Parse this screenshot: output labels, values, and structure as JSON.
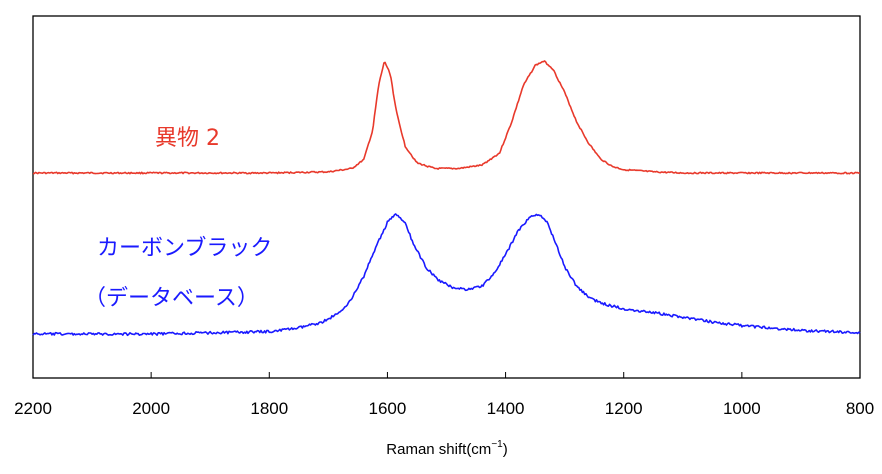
{
  "chart_data": {
    "type": "line",
    "xlabel": "Raman shift(cm",
    "xlabel_sup": "−1",
    "xlabel_close": ")",
    "xlim": [
      2200,
      800
    ],
    "x_reversed": true,
    "x_ticks": [
      2200,
      2000,
      1800,
      1600,
      1400,
      1200,
      1000,
      800
    ],
    "y_ticks_shown": false,
    "grid": false,
    "series": [
      {
        "name": "異物 2",
        "color": "#e8392b",
        "points": [
          [
            2200,
            0.0
          ],
          [
            1800,
            0.0
          ],
          [
            1700,
            0.01
          ],
          [
            1660,
            0.04
          ],
          [
            1640,
            0.12
          ],
          [
            1625,
            0.38
          ],
          [
            1615,
            0.78
          ],
          [
            1605,
            1.0
          ],
          [
            1595,
            0.88
          ],
          [
            1585,
            0.55
          ],
          [
            1570,
            0.24
          ],
          [
            1550,
            0.09
          ],
          [
            1520,
            0.04
          ],
          [
            1480,
            0.04
          ],
          [
            1440,
            0.07
          ],
          [
            1410,
            0.18
          ],
          [
            1390,
            0.45
          ],
          [
            1370,
            0.78
          ],
          [
            1350,
            0.96
          ],
          [
            1335,
            1.0
          ],
          [
            1320,
            0.93
          ],
          [
            1300,
            0.72
          ],
          [
            1280,
            0.46
          ],
          [
            1260,
            0.27
          ],
          [
            1240,
            0.13
          ],
          [
            1220,
            0.06
          ],
          [
            1200,
            0.03
          ],
          [
            1150,
            0.01
          ],
          [
            1100,
            0.0
          ],
          [
            800,
            0.0
          ]
        ]
      },
      {
        "name_lines": [
          "カーボンブラック",
          "（データベース）"
        ],
        "color": "#1a1aff",
        "points": [
          [
            2200,
            0.0
          ],
          [
            2000,
            0.0
          ],
          [
            1900,
            0.01
          ],
          [
            1800,
            0.02
          ],
          [
            1750,
            0.05
          ],
          [
            1710,
            0.1
          ],
          [
            1680,
            0.18
          ],
          [
            1660,
            0.3
          ],
          [
            1640,
            0.48
          ],
          [
            1620,
            0.72
          ],
          [
            1600,
            0.93
          ],
          [
            1585,
            1.0
          ],
          [
            1570,
            0.92
          ],
          [
            1555,
            0.74
          ],
          [
            1535,
            0.56
          ],
          [
            1515,
            0.45
          ],
          [
            1490,
            0.39
          ],
          [
            1465,
            0.37
          ],
          [
            1440,
            0.4
          ],
          [
            1420,
            0.5
          ],
          [
            1400,
            0.66
          ],
          [
            1380,
            0.85
          ],
          [
            1360,
            0.97
          ],
          [
            1345,
            1.0
          ],
          [
            1330,
            0.93
          ],
          [
            1315,
            0.76
          ],
          [
            1300,
            0.56
          ],
          [
            1280,
            0.4
          ],
          [
            1260,
            0.31
          ],
          [
            1240,
            0.26
          ],
          [
            1200,
            0.21
          ],
          [
            1150,
            0.18
          ],
          [
            1100,
            0.14
          ],
          [
            1050,
            0.1
          ],
          [
            1000,
            0.07
          ],
          [
            950,
            0.05
          ],
          [
            900,
            0.03
          ],
          [
            850,
            0.02
          ],
          [
            800,
            0.01
          ]
        ]
      }
    ]
  }
}
